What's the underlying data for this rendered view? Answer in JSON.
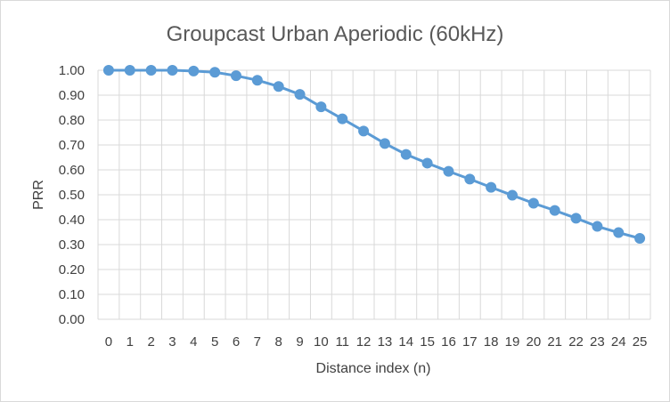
{
  "chart_data": {
    "type": "line",
    "title": "Groupcast Urban Aperiodic (60kHz)",
    "xlabel": "Distance index (n)",
    "ylabel": "PRR",
    "x": [
      0,
      1,
      2,
      3,
      4,
      5,
      6,
      7,
      8,
      9,
      10,
      11,
      12,
      13,
      14,
      15,
      16,
      17,
      18,
      19,
      20,
      21,
      22,
      23,
      24,
      25
    ],
    "series": [
      {
        "values": [
          1.0,
          1.0,
          1.0,
          1.0,
          0.997,
          0.992,
          0.978,
          0.96,
          0.935,
          0.903,
          0.853,
          0.805,
          0.756,
          0.706,
          0.662,
          0.627,
          0.594,
          0.563,
          0.53,
          0.498,
          0.466,
          0.437,
          0.406,
          0.373,
          0.348,
          0.325
        ],
        "color": "#5b9bd5"
      }
    ],
    "ylim": [
      0,
      1.0
    ],
    "yticks": [
      "0.00",
      "0.10",
      "0.20",
      "0.30",
      "0.40",
      "0.50",
      "0.60",
      "0.70",
      "0.80",
      "0.90",
      "1.00"
    ],
    "xticks": [
      "0",
      "1",
      "2",
      "3",
      "4",
      "5",
      "6",
      "7",
      "8",
      "9",
      "10",
      "11",
      "12",
      "13",
      "14",
      "15",
      "16",
      "17",
      "18",
      "19",
      "20",
      "21",
      "22",
      "23",
      "24",
      "25"
    ],
    "grid": true,
    "gridlines": "both",
    "legend": "none",
    "colors": {
      "grid": "#d9d9d9",
      "text": "#404040",
      "title": "#595959"
    }
  }
}
